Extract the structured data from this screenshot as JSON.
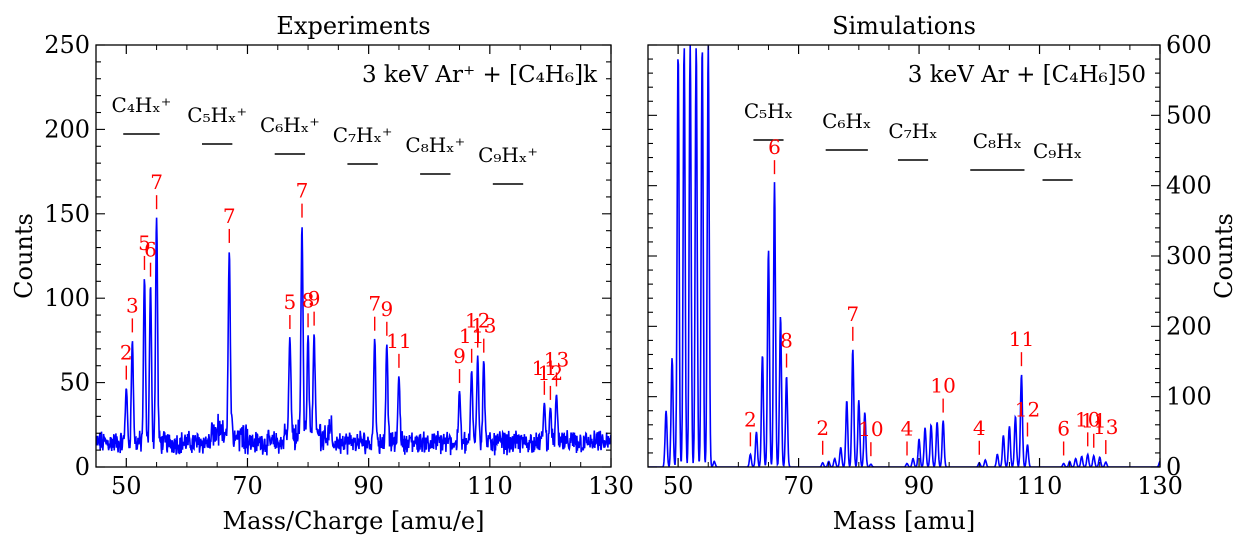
{
  "colors": {
    "data": "#0000ff",
    "annotation": "#ff0000",
    "axis": "#000000"
  },
  "chart_data": [
    {
      "type": "line",
      "title": "Experiments",
      "xlabel": "Mass/Charge [amu/e]",
      "ylabel": "Counts",
      "xlim": [
        45,
        130
      ],
      "ylim": [
        0,
        250
      ],
      "xticks": [
        50,
        70,
        90,
        110,
        130
      ],
      "yticks": [
        0,
        50,
        100,
        150,
        200,
        250
      ],
      "y_axis_side": "left",
      "noise_floor": 20,
      "annotation": "3 keV Ar⁺ + [C₄H₆]k",
      "groups": [
        {
          "label": "C₄Hₓ⁺",
          "x": 50,
          "range": [
            49,
            56
          ]
        },
        {
          "label": "C₅Hₓ⁺",
          "x": 62,
          "range": [
            62,
            68
          ]
        },
        {
          "label": "C₆Hₓ⁺",
          "x": 74,
          "range": [
            74,
            80
          ]
        },
        {
          "label": "C₇Hₓ⁺",
          "x": 86,
          "range": [
            86,
            92
          ]
        },
        {
          "label": "C₈Hₓ⁺",
          "x": 98,
          "range": [
            98,
            104
          ]
        },
        {
          "label": "C₉Hₓ⁺",
          "x": 110,
          "range": [
            110,
            116
          ]
        }
      ],
      "peaks": [
        {
          "mass": 50,
          "counts": 47,
          "label": "2"
        },
        {
          "mass": 51,
          "counts": 75,
          "label": "3"
        },
        {
          "mass": 53,
          "counts": 112,
          "label": "5"
        },
        {
          "mass": 54,
          "counts": 108,
          "label": "6"
        },
        {
          "mass": 55,
          "counts": 148,
          "label": "7"
        },
        {
          "mass": 67,
          "counts": 128,
          "label": "7"
        },
        {
          "mass": 77,
          "counts": 77,
          "label": "5"
        },
        {
          "mass": 79,
          "counts": 143,
          "label": "7"
        },
        {
          "mass": 80,
          "counts": 78,
          "label": "8"
        },
        {
          "mass": 81,
          "counts": 79,
          "label": "9"
        },
        {
          "mass": 91,
          "counts": 76,
          "label": "7"
        },
        {
          "mass": 93,
          "counts": 73,
          "label": "9"
        },
        {
          "mass": 95,
          "counts": 54,
          "label": "11"
        },
        {
          "mass": 105,
          "counts": 45,
          "label": "9"
        },
        {
          "mass": 107,
          "counts": 57,
          "label": "11"
        },
        {
          "mass": 108,
          "counts": 66,
          "label": "12"
        },
        {
          "mass": 109,
          "counts": 63,
          "label": "13"
        },
        {
          "mass": 119,
          "counts": 38,
          "label": "11"
        },
        {
          "mass": 120,
          "counts": 35,
          "label": "12"
        },
        {
          "mass": 121,
          "counts": 43,
          "label": "13"
        }
      ]
    },
    {
      "type": "line",
      "title": "Simulations",
      "xlabel": "Mass [amu]",
      "ylabel": "Counts",
      "xlim": [
        45,
        130
      ],
      "ylim": [
        0,
        600
      ],
      "xticks": [
        50,
        70,
        90,
        110,
        130
      ],
      "yticks": [
        0,
        100,
        200,
        300,
        400,
        500,
        600
      ],
      "y_axis_side": "right",
      "noise_floor": 0,
      "annotation": "3 keV Ar + [C₄H₆]50",
      "groups": [
        {
          "label": "C₅Hₓ",
          "x": 62,
          "range": [
            62,
            68
          ]
        },
        {
          "label": "C₆Hₓ",
          "x": 74,
          "range": [
            74,
            82
          ]
        },
        {
          "label": "C₇Hₓ",
          "x": 86,
          "range": [
            86,
            92
          ]
        },
        {
          "label": "C₈Hₓ",
          "x": 98,
          "range": [
            98,
            108
          ]
        },
        {
          "label": "C₉Hₓ",
          "x": 110,
          "range": [
            110,
            116
          ]
        }
      ],
      "peaks": [
        {
          "mass": 48,
          "counts": 80,
          "label": ""
        },
        {
          "mass": 49,
          "counts": 155,
          "label": ""
        },
        {
          "mass": 50,
          "counts": 590,
          "label": ""
        },
        {
          "mass": 51,
          "counts": 600,
          "label": ""
        },
        {
          "mass": 52,
          "counts": 600,
          "label": ""
        },
        {
          "mass": 53,
          "counts": 600,
          "label": ""
        },
        {
          "mass": 54,
          "counts": 600,
          "label": ""
        },
        {
          "mass": 55,
          "counts": 600,
          "label": ""
        },
        {
          "mass": 56,
          "counts": 8,
          "label": ""
        },
        {
          "mass": 62,
          "counts": 18,
          "label": "2"
        },
        {
          "mass": 63,
          "counts": 50,
          "label": ""
        },
        {
          "mass": 64,
          "counts": 160,
          "label": ""
        },
        {
          "mass": 65,
          "counts": 310,
          "label": ""
        },
        {
          "mass": 66,
          "counts": 405,
          "label": "6"
        },
        {
          "mass": 67,
          "counts": 215,
          "label": ""
        },
        {
          "mass": 68,
          "counts": 130,
          "label": "8"
        },
        {
          "mass": 74,
          "counts": 6,
          "label": "2"
        },
        {
          "mass": 75,
          "counts": 8,
          "label": ""
        },
        {
          "mass": 76,
          "counts": 12,
          "label": ""
        },
        {
          "mass": 77,
          "counts": 28,
          "label": ""
        },
        {
          "mass": 78,
          "counts": 95,
          "label": ""
        },
        {
          "mass": 79,
          "counts": 168,
          "label": "7"
        },
        {
          "mass": 80,
          "counts": 95,
          "label": ""
        },
        {
          "mass": 81,
          "counts": 78,
          "label": ""
        },
        {
          "mass": 82,
          "counts": 4,
          "label": "10"
        },
        {
          "mass": 88,
          "counts": 5,
          "label": "4"
        },
        {
          "mass": 89,
          "counts": 12,
          "label": ""
        },
        {
          "mass": 90,
          "counts": 40,
          "label": ""
        },
        {
          "mass": 91,
          "counts": 56,
          "label": ""
        },
        {
          "mass": 92,
          "counts": 60,
          "label": ""
        },
        {
          "mass": 93,
          "counts": 64,
          "label": ""
        },
        {
          "mass": 94,
          "counts": 66,
          "label": "10"
        },
        {
          "mass": 100,
          "counts": 6,
          "label": "4"
        },
        {
          "mass": 101,
          "counts": 10,
          "label": ""
        },
        {
          "mass": 103,
          "counts": 18,
          "label": ""
        },
        {
          "mass": 104,
          "counts": 45,
          "label": ""
        },
        {
          "mass": 105,
          "counts": 58,
          "label": ""
        },
        {
          "mass": 106,
          "counts": 72,
          "label": ""
        },
        {
          "mass": 107,
          "counts": 132,
          "label": "11"
        },
        {
          "mass": 108,
          "counts": 32,
          "label": "12"
        },
        {
          "mass": 114,
          "counts": 5,
          "label": "6"
        },
        {
          "mass": 115,
          "counts": 8,
          "label": ""
        },
        {
          "mass": 116,
          "counts": 12,
          "label": ""
        },
        {
          "mass": 117,
          "counts": 15,
          "label": ""
        },
        {
          "mass": 118,
          "counts": 18,
          "label": "10"
        },
        {
          "mass": 119,
          "counts": 16,
          "label": "11"
        },
        {
          "mass": 120,
          "counts": 14,
          "label": ""
        },
        {
          "mass": 121,
          "counts": 7,
          "label": "13"
        },
        {
          "mass": 130,
          "counts": 8,
          "label": ""
        }
      ]
    }
  ]
}
